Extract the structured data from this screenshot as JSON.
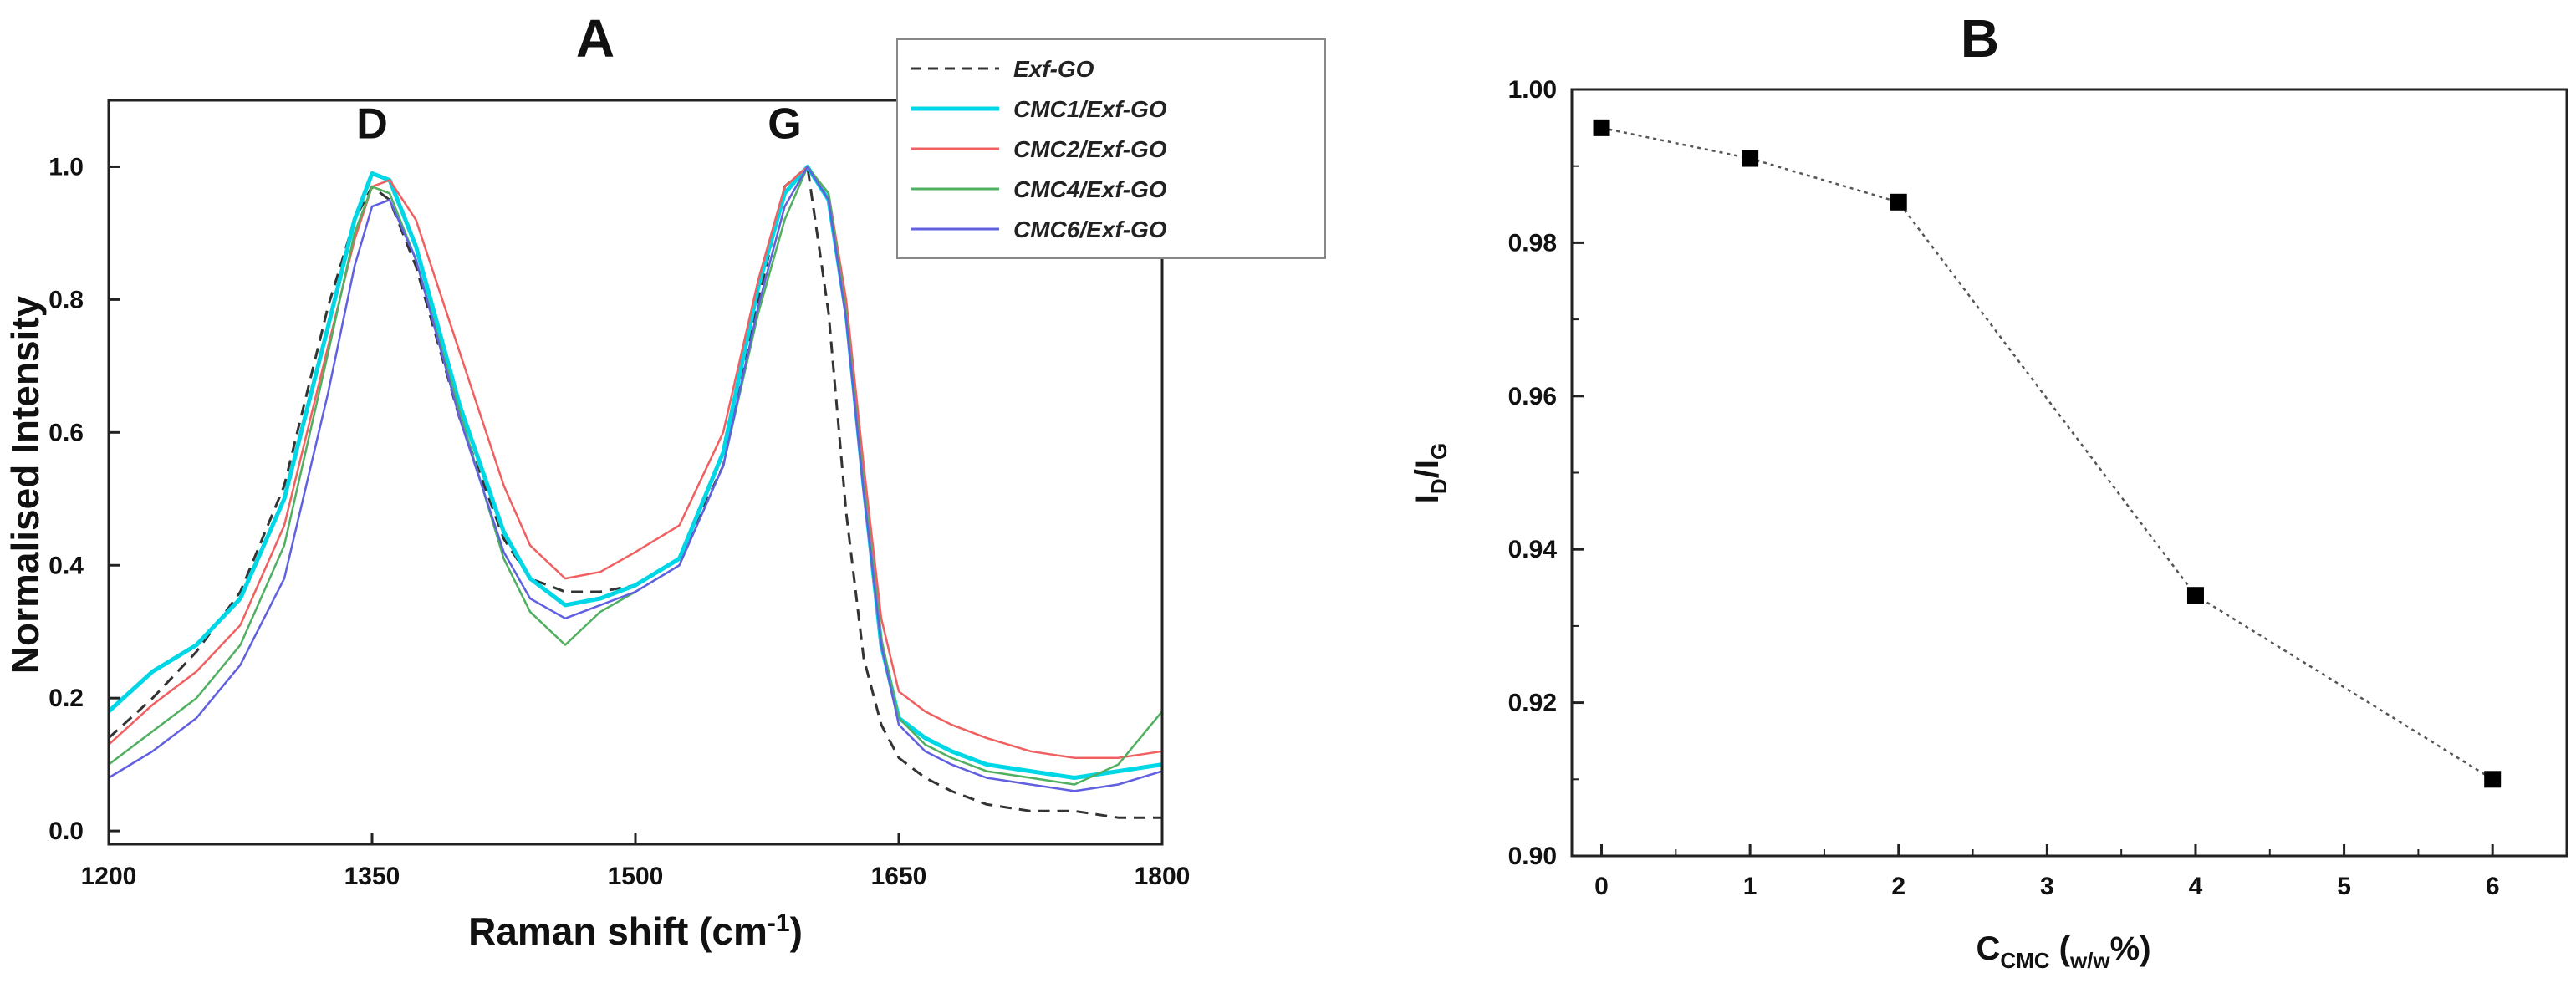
{
  "chart_data": [
    {
      "id": "A",
      "type": "line",
      "panel_label": "A",
      "xlabel": "Raman shift (cm",
      "xlabel_sup": "-1",
      "xlabel_close": ")",
      "ylabel": "Normalised Intensity",
      "xlim": [
        1200,
        1800
      ],
      "ylim": [
        -0.02,
        1.1
      ],
      "xticks": [
        1200,
        1350,
        1500,
        1650,
        1800
      ],
      "xtick_labels": [
        "1200",
        "1350",
        "1500",
        "1650",
        "1800"
      ],
      "yticks": [
        0.0,
        0.2,
        0.4,
        0.6,
        0.8,
        1.0
      ],
      "ytick_labels": [
        "0.0",
        "0.2",
        "0.4",
        "0.6",
        "0.8",
        "1.0"
      ],
      "annotations": [
        {
          "text": "D",
          "x": 1350,
          "y": 1.03
        },
        {
          "text": "G",
          "x": 1585,
          "y": 1.03
        }
      ],
      "legend_position": "top-right",
      "series": [
        {
          "name": "Exf-GO",
          "color": "#333333",
          "dashed": true,
          "width": 3,
          "x": [
            1200,
            1225,
            1250,
            1275,
            1300,
            1325,
            1340,
            1350,
            1360,
            1375,
            1400,
            1425,
            1440,
            1460,
            1480,
            1500,
            1525,
            1550,
            1570,
            1585,
            1598,
            1610,
            1620,
            1630,
            1640,
            1650,
            1665,
            1680,
            1700,
            1725,
            1750,
            1775,
            1800
          ],
          "y": [
            0.14,
            0.2,
            0.27,
            0.36,
            0.52,
            0.79,
            0.92,
            0.97,
            0.95,
            0.85,
            0.62,
            0.44,
            0.38,
            0.36,
            0.36,
            0.37,
            0.41,
            0.55,
            0.8,
            0.97,
            1.0,
            0.78,
            0.48,
            0.26,
            0.16,
            0.11,
            0.08,
            0.06,
            0.04,
            0.03,
            0.03,
            0.02,
            0.02
          ]
        },
        {
          "name": "CMC1/Exf-GO",
          "color": "#00d7e6",
          "dashed": false,
          "width": 5,
          "x": [
            1200,
            1225,
            1250,
            1275,
            1300,
            1325,
            1340,
            1350,
            1360,
            1375,
            1400,
            1425,
            1440,
            1460,
            1480,
            1500,
            1525,
            1550,
            1570,
            1585,
            1598,
            1610,
            1620,
            1630,
            1640,
            1650,
            1665,
            1680,
            1700,
            1725,
            1750,
            1775,
            1800
          ],
          "y": [
            0.18,
            0.24,
            0.28,
            0.35,
            0.5,
            0.76,
            0.92,
            0.99,
            0.98,
            0.88,
            0.64,
            0.45,
            0.38,
            0.34,
            0.35,
            0.37,
            0.41,
            0.57,
            0.82,
            0.96,
            1.0,
            0.95,
            0.78,
            0.52,
            0.28,
            0.17,
            0.14,
            0.12,
            0.1,
            0.09,
            0.08,
            0.09,
            0.1
          ]
        },
        {
          "name": "CMC2/Exf-GO",
          "color": "#f06060",
          "dashed": false,
          "width": 2.5,
          "x": [
            1200,
            1225,
            1250,
            1275,
            1300,
            1325,
            1340,
            1350,
            1360,
            1375,
            1400,
            1425,
            1440,
            1460,
            1480,
            1500,
            1525,
            1550,
            1570,
            1585,
            1598,
            1610,
            1620,
            1630,
            1640,
            1650,
            1665,
            1680,
            1700,
            1725,
            1750,
            1775,
            1800
          ],
          "y": [
            0.13,
            0.19,
            0.24,
            0.31,
            0.46,
            0.73,
            0.89,
            0.97,
            0.98,
            0.92,
            0.72,
            0.52,
            0.43,
            0.38,
            0.39,
            0.42,
            0.46,
            0.6,
            0.83,
            0.97,
            1.0,
            0.96,
            0.8,
            0.55,
            0.32,
            0.21,
            0.18,
            0.16,
            0.14,
            0.12,
            0.11,
            0.11,
            0.12
          ]
        },
        {
          "name": "CMC4/Exf-GO",
          "color": "#50b060",
          "dashed": false,
          "width": 2.5,
          "x": [
            1200,
            1225,
            1250,
            1275,
            1300,
            1325,
            1340,
            1350,
            1360,
            1375,
            1400,
            1425,
            1440,
            1460,
            1480,
            1500,
            1525,
            1550,
            1570,
            1585,
            1598,
            1610,
            1620,
            1630,
            1640,
            1650,
            1665,
            1680,
            1700,
            1725,
            1750,
            1775,
            1800
          ],
          "y": [
            0.1,
            0.15,
            0.2,
            0.28,
            0.43,
            0.72,
            0.9,
            0.97,
            0.96,
            0.86,
            0.63,
            0.41,
            0.33,
            0.28,
            0.33,
            0.36,
            0.4,
            0.55,
            0.78,
            0.92,
            1.0,
            0.96,
            0.78,
            0.52,
            0.29,
            0.17,
            0.13,
            0.11,
            0.09,
            0.08,
            0.07,
            0.1,
            0.18
          ]
        },
        {
          "name": "CMC6/Exf-GO",
          "color": "#6060e0",
          "dashed": false,
          "width": 2.5,
          "x": [
            1200,
            1225,
            1250,
            1275,
            1300,
            1325,
            1340,
            1350,
            1360,
            1375,
            1400,
            1425,
            1440,
            1460,
            1480,
            1500,
            1525,
            1550,
            1570,
            1585,
            1598,
            1610,
            1620,
            1630,
            1640,
            1650,
            1665,
            1680,
            1700,
            1725,
            1750,
            1775,
            1800
          ],
          "y": [
            0.08,
            0.12,
            0.17,
            0.25,
            0.38,
            0.66,
            0.85,
            0.94,
            0.95,
            0.86,
            0.62,
            0.42,
            0.35,
            0.32,
            0.34,
            0.36,
            0.4,
            0.55,
            0.79,
            0.94,
            1.0,
            0.95,
            0.77,
            0.51,
            0.28,
            0.16,
            0.12,
            0.1,
            0.08,
            0.07,
            0.06,
            0.07,
            0.09
          ]
        }
      ]
    },
    {
      "id": "B",
      "type": "scatter",
      "panel_label": "B",
      "xlabel": "C",
      "xlabel_sub": "CMC",
      "xlabel_unit_open": " (",
      "xlabel_unit_sub": "w/w",
      "xlabel_unit_close": "%)",
      "ylabel": "I",
      "ylabel_sub1": "D",
      "ylabel_slash": "/I",
      "ylabel_sub2": "G",
      "xlim": [
        -0.2,
        6.5
      ],
      "ylim": [
        0.9,
        1.0
      ],
      "xticks": [
        0,
        1,
        2,
        3,
        4,
        5,
        6
      ],
      "xtick_labels": [
        "0",
        "1",
        "2",
        "3",
        "4",
        "5",
        "6"
      ],
      "yticks": [
        0.9,
        0.92,
        0.94,
        0.96,
        0.98,
        1.0
      ],
      "ytick_labels": [
        "0.90",
        "0.92",
        "0.94",
        "0.96",
        "0.98",
        "1.00"
      ],
      "marker": "square",
      "color": "#000000",
      "connector": "dotted",
      "x": [
        0,
        1,
        2,
        4,
        6
      ],
      "y": [
        0.995,
        0.991,
        0.9853,
        0.934,
        0.91
      ]
    }
  ]
}
